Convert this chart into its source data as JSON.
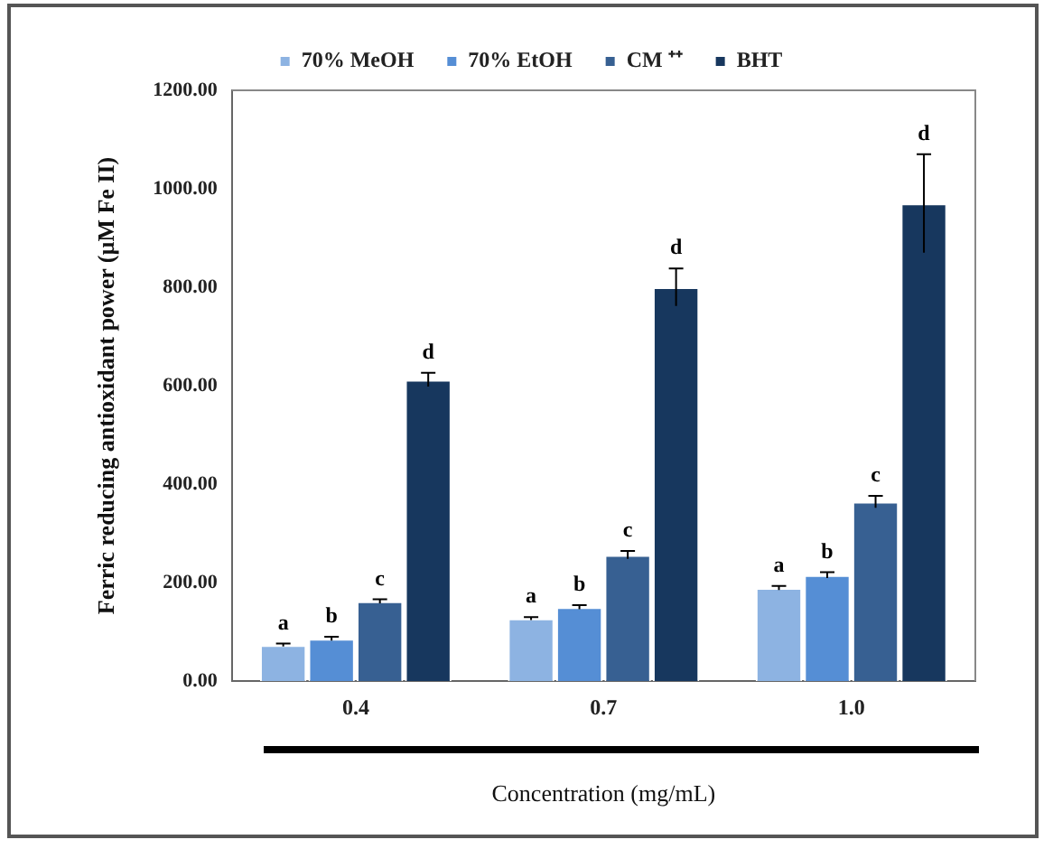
{
  "chart_data": {
    "type": "bar",
    "xlabel": "Concentration (mg/mL)",
    "ylabel": "Ferric reducing antioxidant power (µM Fe II)",
    "categories": [
      "0.4",
      "0.7",
      "1.0"
    ],
    "series": [
      {
        "name": "70% MeOH",
        "color": "#8db3e2",
        "values": [
          73,
          127,
          189
        ],
        "errors": [
          3,
          3,
          4
        ]
      },
      {
        "name": "70% EtOH",
        "color": "#558ed5",
        "values": [
          86,
          150,
          215
        ],
        "errors": [
          4,
          4,
          6
        ]
      },
      {
        "name": "CM ⁺⁺",
        "color": "#376092",
        "values": [
          162,
          256,
          364
        ],
        "errors": [
          4,
          8,
          12
        ]
      },
      {
        "name": "BHT",
        "color": "#17375e",
        "values": [
          612,
          800,
          970
        ],
        "errors": [
          14,
          38,
          100
        ]
      }
    ],
    "ylim": [
      0,
      1200
    ],
    "yticks": [
      {
        "value": 0,
        "label": "0.00"
      },
      {
        "value": 200,
        "label": "200.00"
      },
      {
        "value": 400,
        "label": "400.00"
      },
      {
        "value": 600,
        "label": "600.00"
      },
      {
        "value": 800,
        "label": "800.00"
      },
      {
        "value": 1000,
        "label": "1000.00"
      },
      {
        "value": 1200,
        "label": "1200.00"
      }
    ],
    "legend": "top",
    "annotations": [
      "a",
      "b",
      "c",
      "d",
      "a",
      "b",
      "c",
      "d",
      "a",
      "b",
      "c",
      "d"
    ]
  }
}
